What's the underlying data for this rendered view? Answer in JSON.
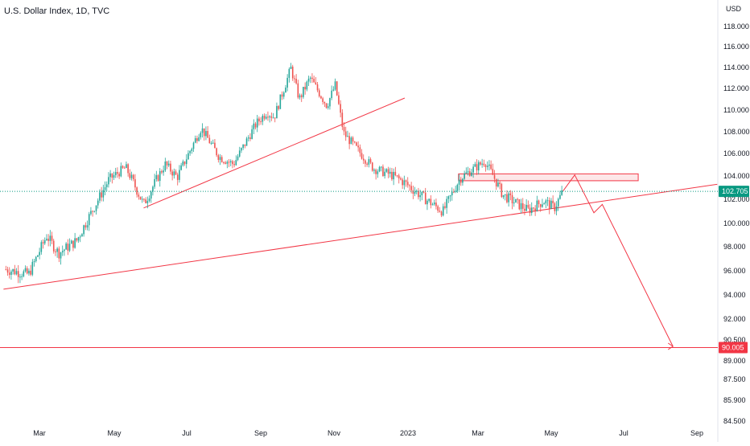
{
  "header": {
    "title": "U.S. Dollar Index, 1D, TVC",
    "currency": "USD"
  },
  "colors": {
    "up": "#26a69a",
    "down": "#ef5350",
    "drawing": "#f23645",
    "last_price": "#089981",
    "target": "#f23645"
  },
  "chart_data": {
    "type": "candlestick",
    "title": "U.S. Dollar Index, 1D, TVC",
    "ylabel": "USD",
    "ylim": [
      84.5,
      119.2
    ],
    "y_ticks": [
      "118.000",
      "116.000",
      "114.000",
      "112.000",
      "110.000",
      "108.000",
      "106.000",
      "104.000",
      "102.000",
      "100.000",
      "98.000",
      "96.000",
      "94.000",
      "92.000",
      "90.500",
      "89.000",
      "87.500",
      "85.900",
      "84.500"
    ],
    "x_ticks": [
      "Mar",
      "May",
      "Jul",
      "Sep",
      "Nov",
      "2023",
      "Mar",
      "May",
      "Jul",
      "Sep"
    ],
    "price_anchors": [
      {
        "date": "2022-02-01",
        "value": 96.3
      },
      {
        "date": "2022-02-20",
        "value": 95.9
      },
      {
        "date": "2022-03-07",
        "value": 99.0
      },
      {
        "date": "2022-03-17",
        "value": 97.6
      },
      {
        "date": "2022-04-01",
        "value": 98.6
      },
      {
        "date": "2022-04-28",
        "value": 103.7
      },
      {
        "date": "2022-05-12",
        "value": 104.8
      },
      {
        "date": "2022-05-27",
        "value": 101.6
      },
      {
        "date": "2022-06-14",
        "value": 105.1
      },
      {
        "date": "2022-06-24",
        "value": 103.9
      },
      {
        "date": "2022-07-14",
        "value": 108.5
      },
      {
        "date": "2022-07-29",
        "value": 105.8
      },
      {
        "date": "2022-08-10",
        "value": 105.1
      },
      {
        "date": "2022-08-29",
        "value": 108.9
      },
      {
        "date": "2022-09-07",
        "value": 110.0
      },
      {
        "date": "2022-09-13",
        "value": 109.5
      },
      {
        "date": "2022-09-27",
        "value": 114.1
      },
      {
        "date": "2022-10-04",
        "value": 111.2
      },
      {
        "date": "2022-10-13",
        "value": 113.2
      },
      {
        "date": "2022-10-27",
        "value": 110.6
      },
      {
        "date": "2022-11-03",
        "value": 112.5
      },
      {
        "date": "2022-11-10",
        "value": 108.0
      },
      {
        "date": "2022-11-25",
        "value": 106.0
      },
      {
        "date": "2022-12-05",
        "value": 104.7
      },
      {
        "date": "2022-12-20",
        "value": 104.1
      },
      {
        "date": "2022-12-30",
        "value": 103.5
      },
      {
        "date": "2023-01-18",
        "value": 102.0
      },
      {
        "date": "2023-02-01",
        "value": 101.0
      },
      {
        "date": "2023-02-15",
        "value": 103.8
      },
      {
        "date": "2023-03-08",
        "value": 105.4
      },
      {
        "date": "2023-03-23",
        "value": 102.4
      },
      {
        "date": "2023-04-13",
        "value": 101.1
      },
      {
        "date": "2023-04-26",
        "value": 101.9
      },
      {
        "date": "2023-05-05",
        "value": 101.3
      },
      {
        "date": "2023-05-12",
        "value": 102.7
      }
    ],
    "last_price": {
      "label": "102.705",
      "value": 102.705
    },
    "target_level": {
      "label": "90.005",
      "value": 90.005
    },
    "resistance_zone": {
      "start": "2023-02-14",
      "end": "2023-07-14",
      "low": 103.6,
      "high": 104.2
    },
    "trendlines": [
      {
        "start": {
          "date": "2022-01-30",
          "value": 94.7
        },
        "end": {
          "date": "2023-09-18",
          "value": 103.3
        }
      },
      {
        "start": {
          "date": "2022-05-27",
          "value": 101.3
        },
        "end": {
          "date": "2022-12-31",
          "value": 111.3
        }
      }
    ],
    "projection_path": [
      {
        "date": "2023-05-12",
        "value": 102.7
      },
      {
        "date": "2023-05-22",
        "value": 104.1
      },
      {
        "date": "2023-06-07",
        "value": 100.9
      },
      {
        "date": "2023-06-14",
        "value": 101.6
      },
      {
        "date": "2023-08-12",
        "value": 90.1
      }
    ]
  }
}
